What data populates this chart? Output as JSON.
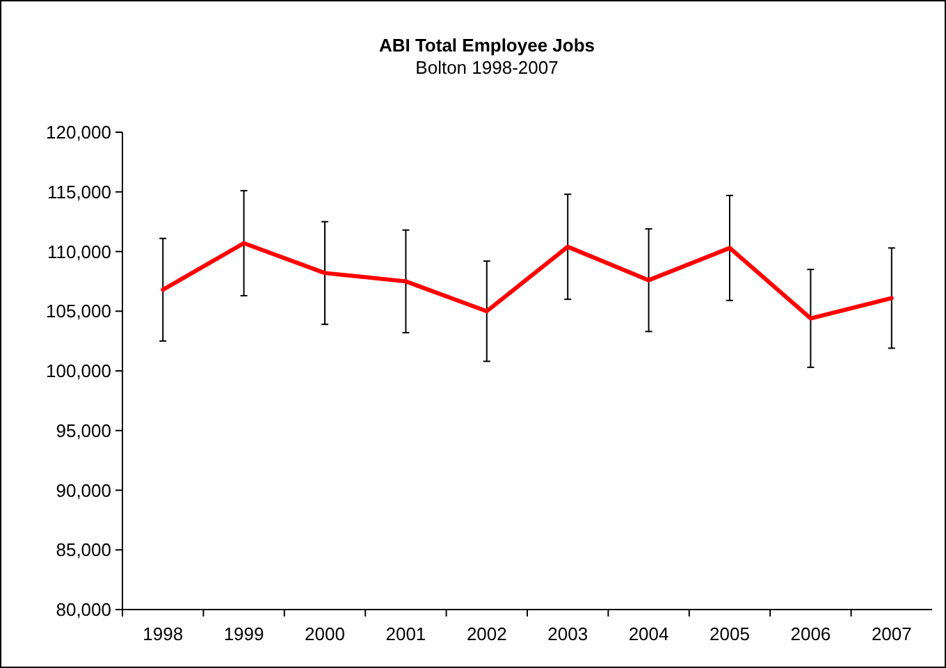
{
  "chart_data": {
    "type": "line",
    "title": "ABI Total Employee Jobs",
    "subtitle": "Bolton 1998-2007",
    "categories": [
      "1998",
      "1999",
      "2000",
      "2001",
      "2002",
      "2003",
      "2004",
      "2005",
      "2006",
      "2007"
    ],
    "series": [
      {
        "color": "#ff0000",
        "values": [
          106800,
          110700,
          108200,
          107500,
          105000,
          110400,
          107600,
          110300,
          104400,
          106100
        ],
        "errors": [
          4300,
          4400,
          4300,
          4300,
          4200,
          4400,
          4300,
          4400,
          4100,
          4200
        ]
      }
    ],
    "ylim": [
      80000,
      120000
    ],
    "yticks": [
      {
        "value": 80000,
        "label": "80,000"
      },
      {
        "value": 85000,
        "label": "85,000"
      },
      {
        "value": 90000,
        "label": "90,000"
      },
      {
        "value": 95000,
        "label": "95,000"
      },
      {
        "value": 100000,
        "label": "100,000"
      },
      {
        "value": 105000,
        "label": "105,000"
      },
      {
        "value": 110000,
        "label": "110,000"
      },
      {
        "value": 115000,
        "label": "115,000"
      },
      {
        "value": 120000,
        "label": "120,000"
      }
    ],
    "grid": false,
    "marker": "none",
    "line_style": "solid"
  }
}
